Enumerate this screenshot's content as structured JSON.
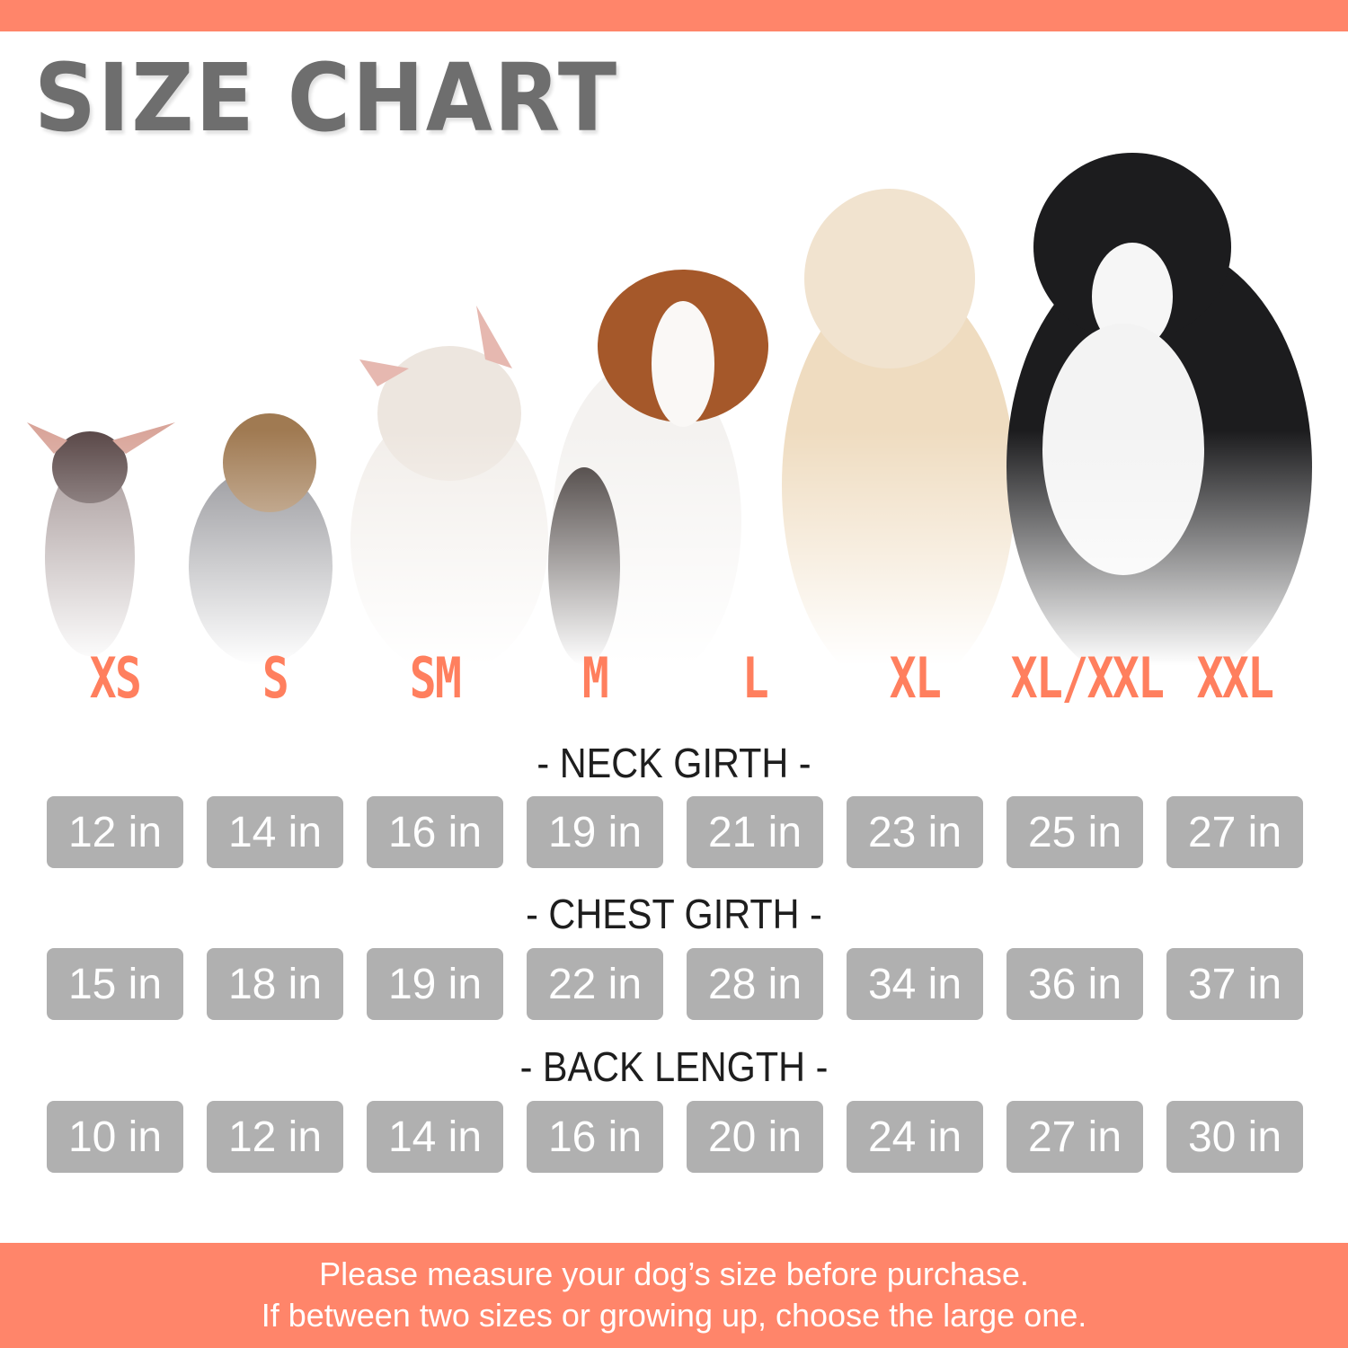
{
  "title": "SIZE CHART",
  "colors": {
    "accent": "#ff856a",
    "size_label": "#ff7f5e",
    "pill": "#b0b0b0",
    "title": "#6e6e6e"
  },
  "sizes": [
    "XS",
    "S",
    "SM",
    "M",
    "L",
    "XL",
    "XL/XXL",
    "XXL"
  ],
  "dogs": [
    "chihuahua",
    "yorkshire-terrier",
    "french-bulldog",
    "beagle",
    "golden-retriever",
    "bernese-mountain-dog"
  ],
  "measurements": [
    {
      "label": "- NECK GIRTH -",
      "values": [
        "12 in",
        "14 in",
        "16 in",
        "19 in",
        "21 in",
        "23 in",
        "25 in",
        "27 in"
      ]
    },
    {
      "label": "- CHEST GIRTH -",
      "values": [
        "15 in",
        "18 in",
        "19 in",
        "22 in",
        "28 in",
        "34 in",
        "36 in",
        "37 in"
      ]
    },
    {
      "label": "- BACK LENGTH -",
      "values": [
        "10 in",
        "12 in",
        "14 in",
        "16 in",
        "20 in",
        "24 in",
        "27 in",
        "30 in"
      ]
    }
  ],
  "footer": {
    "line1": "Please measure your dog’s size before purchase.",
    "line2": "If between two sizes or growing up, choose the large one."
  }
}
